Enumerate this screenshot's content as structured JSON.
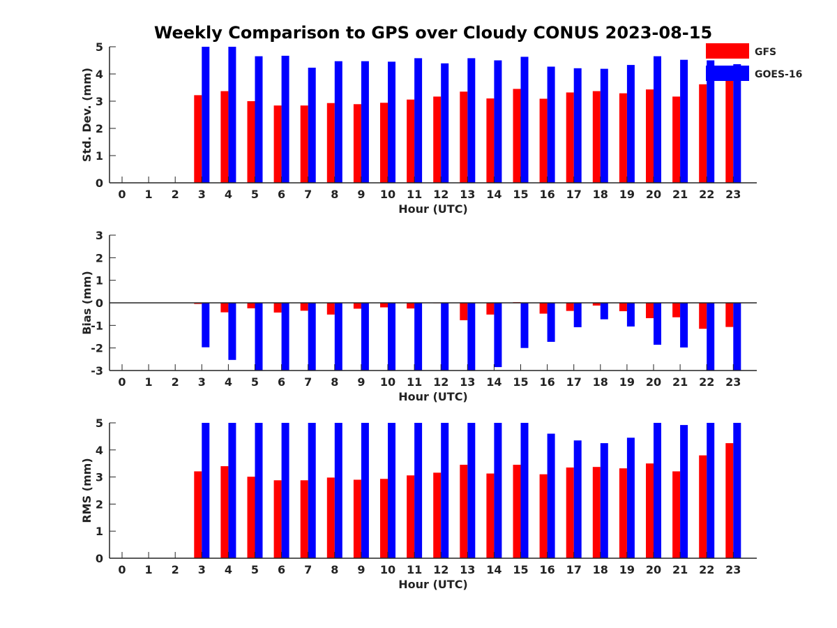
{
  "figure": {
    "title": "Weekly Comparison to GPS over Cloudy CONUS 2023-08-15"
  },
  "legend": {
    "placement": "top-right",
    "entries": [
      {
        "name": "GFS",
        "color": "#ff0000"
      },
      {
        "name": "GOES-16",
        "color": "#0000ff"
      }
    ]
  },
  "chart_data": [
    {
      "type": "bar",
      "title": "Weekly Comparison to GPS over Cloudy CONUS 2023-08-15",
      "xlabel": "Hour (UTC)",
      "ylabel": "Std. Dev. (mm)",
      "ylim": [
        0,
        5
      ],
      "yticks": [
        0,
        1,
        2,
        3,
        4,
        5
      ],
      "categories": [
        "0",
        "1",
        "2",
        "3",
        "4",
        "5",
        "6",
        "7",
        "8",
        "9",
        "10",
        "11",
        "12",
        "13",
        "14",
        "15",
        "16",
        "17",
        "18",
        "19",
        "20",
        "21",
        "22",
        "23"
      ],
      "series": [
        {
          "name": "GFS",
          "color": "#ff0000",
          "values": [
            null,
            null,
            null,
            3.22,
            3.37,
            3.0,
            2.84,
            2.84,
            2.93,
            2.89,
            2.94,
            3.06,
            3.17,
            3.35,
            3.1,
            3.45,
            3.09,
            3.32,
            3.37,
            3.29,
            3.43,
            3.17,
            3.62,
            3.75
          ]
        },
        {
          "name": "GOES-16",
          "color": "#0000ff",
          "values": [
            null,
            null,
            null,
            5.0,
            5.0,
            4.65,
            4.67,
            4.23,
            4.47,
            4.47,
            4.45,
            4.58,
            4.39,
            4.58,
            4.5,
            4.63,
            4.27,
            4.21,
            4.19,
            4.33,
            4.65,
            4.52,
            4.5,
            4.36
          ]
        }
      ]
    },
    {
      "type": "bar",
      "xlabel": "Hour (UTC)",
      "ylabel": "Bias (mm)",
      "ylim": [
        -3,
        3
      ],
      "yticks": [
        -3,
        -2,
        -1,
        0,
        1,
        2,
        3
      ],
      "categories": [
        "0",
        "1",
        "2",
        "3",
        "4",
        "5",
        "6",
        "7",
        "8",
        "9",
        "10",
        "11",
        "12",
        "13",
        "14",
        "15",
        "16",
        "17",
        "18",
        "19",
        "20",
        "21",
        "22",
        "23"
      ],
      "series": [
        {
          "name": "GFS",
          "color": "#ff0000",
          "values": [
            null,
            null,
            null,
            -0.05,
            -0.42,
            -0.24,
            -0.43,
            -0.35,
            -0.52,
            -0.26,
            -0.2,
            -0.25,
            0,
            -0.77,
            -0.52,
            0.03,
            -0.48,
            -0.36,
            -0.12,
            -0.37,
            -0.68,
            -0.64,
            -1.15,
            -1.07
          ]
        },
        {
          "name": "GOES-16",
          "color": "#0000ff",
          "values": [
            null,
            null,
            null,
            -1.97,
            -2.53,
            -3.0,
            -3.0,
            -3.0,
            -3.0,
            -3.0,
            -3.0,
            -3.0,
            -3.0,
            -3.0,
            -2.85,
            -2.0,
            -1.73,
            -1.08,
            -0.73,
            -1.05,
            -1.86,
            -1.98,
            -3.0,
            -3.0
          ]
        }
      ]
    },
    {
      "type": "bar",
      "xlabel": "Hour (UTC)",
      "ylabel": "RMS (mm)",
      "ylim": [
        0,
        5
      ],
      "yticks": [
        0,
        1,
        2,
        3,
        4,
        5
      ],
      "categories": [
        "0",
        "1",
        "2",
        "3",
        "4",
        "5",
        "6",
        "7",
        "8",
        "9",
        "10",
        "11",
        "12",
        "13",
        "14",
        "15",
        "16",
        "17",
        "18",
        "19",
        "20",
        "21",
        "22",
        "23"
      ],
      "series": [
        {
          "name": "GFS",
          "color": "#ff0000",
          "values": [
            null,
            null,
            null,
            3.21,
            3.4,
            3.01,
            2.88,
            2.88,
            2.98,
            2.9,
            2.93,
            3.06,
            3.16,
            3.45,
            3.13,
            3.45,
            3.1,
            3.35,
            3.37,
            3.32,
            3.5,
            3.21,
            3.8,
            4.25
          ]
        },
        {
          "name": "GOES-16",
          "color": "#0000ff",
          "values": [
            null,
            null,
            null,
            5.0,
            5.0,
            5.0,
            5.0,
            5.0,
            5.0,
            5.0,
            5.0,
            5.0,
            5.0,
            5.0,
            5.0,
            5.0,
            4.6,
            4.35,
            4.25,
            4.45,
            5.0,
            4.92,
            5.0,
            5.0
          ]
        }
      ]
    }
  ]
}
